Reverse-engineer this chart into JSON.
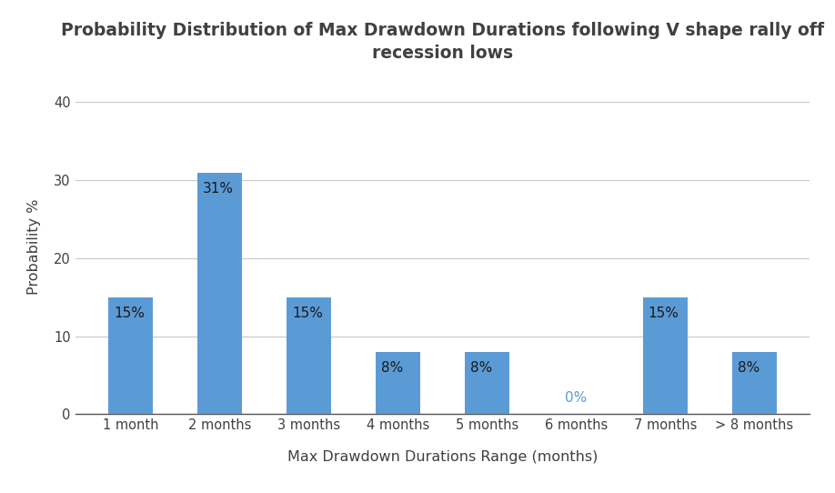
{
  "title_line1": "Probability Distribution of Max Drawdown Durations following V shape rally off",
  "title_line2": "recession lows",
  "xlabel": "Max Drawdown Durations Range (months)",
  "ylabel": "Probability %",
  "categories": [
    "1 month",
    "2 months",
    "3 months",
    "4 months",
    "5 months",
    "6 months",
    "7 months",
    "> 8 months"
  ],
  "values": [
    15,
    31,
    15,
    8,
    8,
    0,
    15,
    8
  ],
  "bar_color": "#5B9BD5",
  "label_color_nonzero": "#1a1a1a",
  "label_color_zero": "#5B9BD5",
  "ylim": [
    0,
    43
  ],
  "yticks": [
    0,
    10,
    20,
    30,
    40
  ],
  "background_color": "#ffffff",
  "grid_color": "#c8c8c8",
  "title_fontsize": 13.5,
  "title_color": "#404040",
  "axis_label_fontsize": 11.5,
  "axis_label_color": "#404040",
  "tick_fontsize": 10.5,
  "tick_color": "#404040",
  "bar_label_fontsize": 11
}
